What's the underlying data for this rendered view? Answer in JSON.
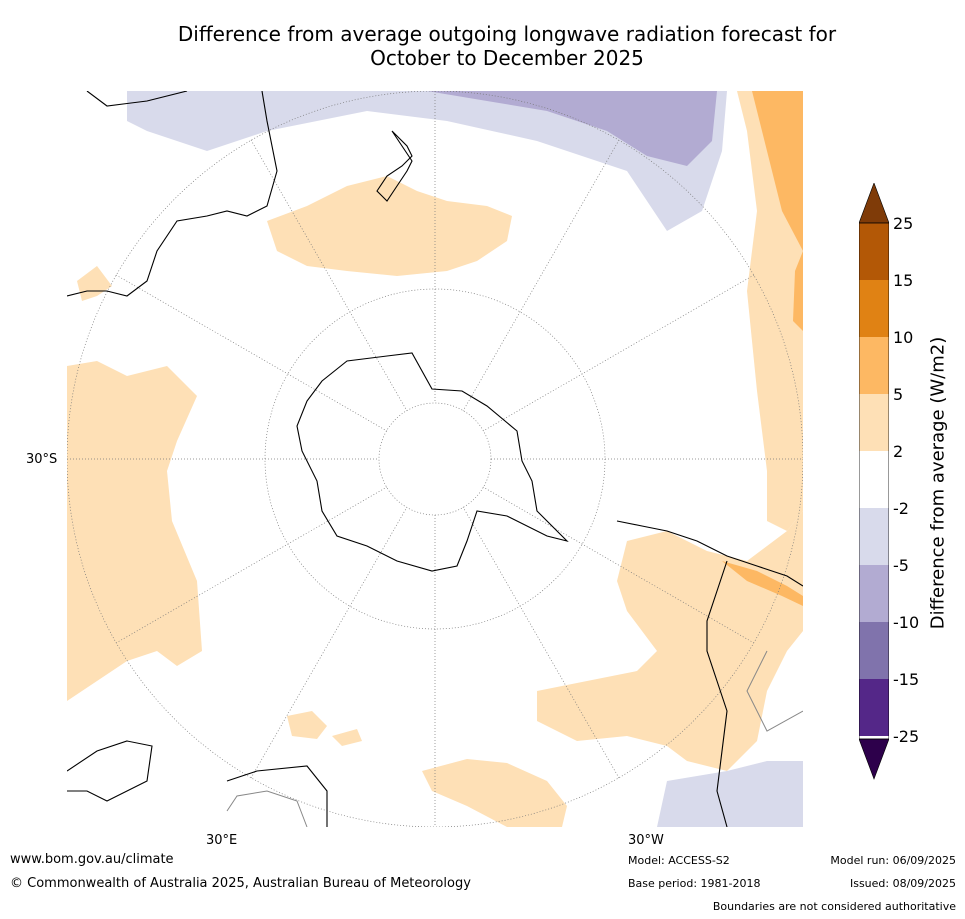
{
  "title_line1": "Difference from average outgoing longwave radiation forecast for",
  "title_line2": "October to December 2025",
  "map_labels": {
    "lat_30s": "30°S",
    "lon_30e": "30°E",
    "lon_30w": "30°W"
  },
  "colorbar": {
    "label": "Difference from average (W/m2)",
    "ticks": [
      "25",
      "15",
      "10",
      "5",
      "2",
      "-2",
      "-5",
      "-10",
      "-15",
      "-25"
    ],
    "colors": {
      "over": "#7f3b08",
      "15_25": "#b35806",
      "10_15": "#e08214",
      "5_10": "#fdb863",
      "2_5": "#fee0b6",
      "neutral": "#ffffff",
      "m5_m2": "#d8daeb",
      "m10_m5": "#b2abd2",
      "m15_m10": "#8073ac",
      "m25_m15": "#542788",
      "under": "#2d004b"
    }
  },
  "footer": {
    "website": "www.bom.gov.au/climate",
    "copyright": "© Commonwealth of Australia 2025, Australian Bureau of Meteorology",
    "model": "Model: ACCESS-S2",
    "base_period": "Base period: 1981-2018",
    "model_run": "Model run: 06/09/2025",
    "issued": "Issued: 08/09/2025",
    "disclaimer": "Boundaries are not considered authoritative"
  }
}
